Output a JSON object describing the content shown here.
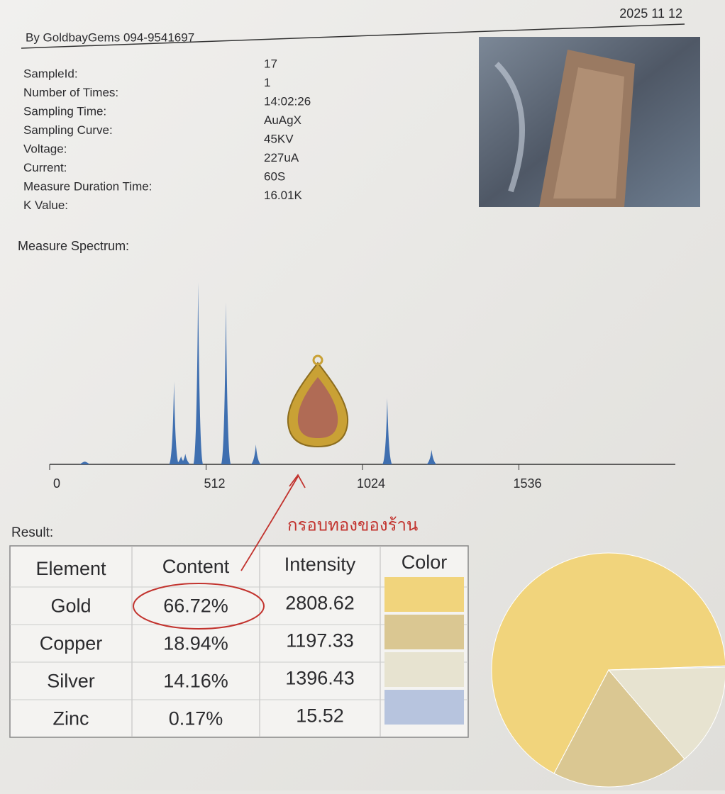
{
  "header": {
    "date": "2025 11 12",
    "by": "By GoldbayGems 094-9541697"
  },
  "info": [
    {
      "label": "SampleId:",
      "value": "17"
    },
    {
      "label": "Number of Times:",
      "value": "1"
    },
    {
      "label": "Sampling Time:",
      "value": "14:02:26"
    },
    {
      "label": "Sampling Curve:",
      "value": "AuAgX"
    },
    {
      "label": "Voltage:",
      "value": "45KV"
    },
    {
      "label": "Current:",
      "value": "227uA"
    },
    {
      "label": "Measure Duration Time:",
      "value": "60S"
    },
    {
      "label": "K Value:",
      "value": "16.01K"
    }
  ],
  "spectrum": {
    "type": "spectrum",
    "title": "Measure Spectrum:",
    "xlim": [
      0,
      2048
    ],
    "xticks": [
      0,
      512,
      1024,
      1536
    ],
    "ylim": [
      0,
      300
    ],
    "color": "#3f6fb0",
    "x": [
      115,
      407,
      430,
      444,
      486,
      577,
      675,
      1105,
      1250
    ],
    "values": [
      4,
      125,
      12,
      16,
      275,
      245,
      30,
      100,
      22
    ]
  },
  "result": {
    "title": "Result:",
    "headers": [
      "Element",
      "Content",
      "Intensity",
      "Color"
    ],
    "rows": [
      {
        "element": "Gold",
        "content": {
          "value": 66.72,
          "label": "66.72%"
        },
        "intensity": "2808.62",
        "color": "#f1d47c"
      },
      {
        "element": "Copper",
        "content": {
          "value": 18.94,
          "label": "18.94%"
        },
        "intensity": "1197.33",
        "color": "#dac792"
      },
      {
        "element": "Silver",
        "content": {
          "value": 14.16,
          "label": "14.16%"
        },
        "intensity": "1396.43",
        "color": "#e7e3d0"
      },
      {
        "element": "Zinc",
        "content": {
          "value": 0.17,
          "label": "0.17%"
        },
        "intensity": "15.52",
        "color": "#b7c4de"
      }
    ]
  },
  "annotation": "กรอบทองของร้าน"
}
